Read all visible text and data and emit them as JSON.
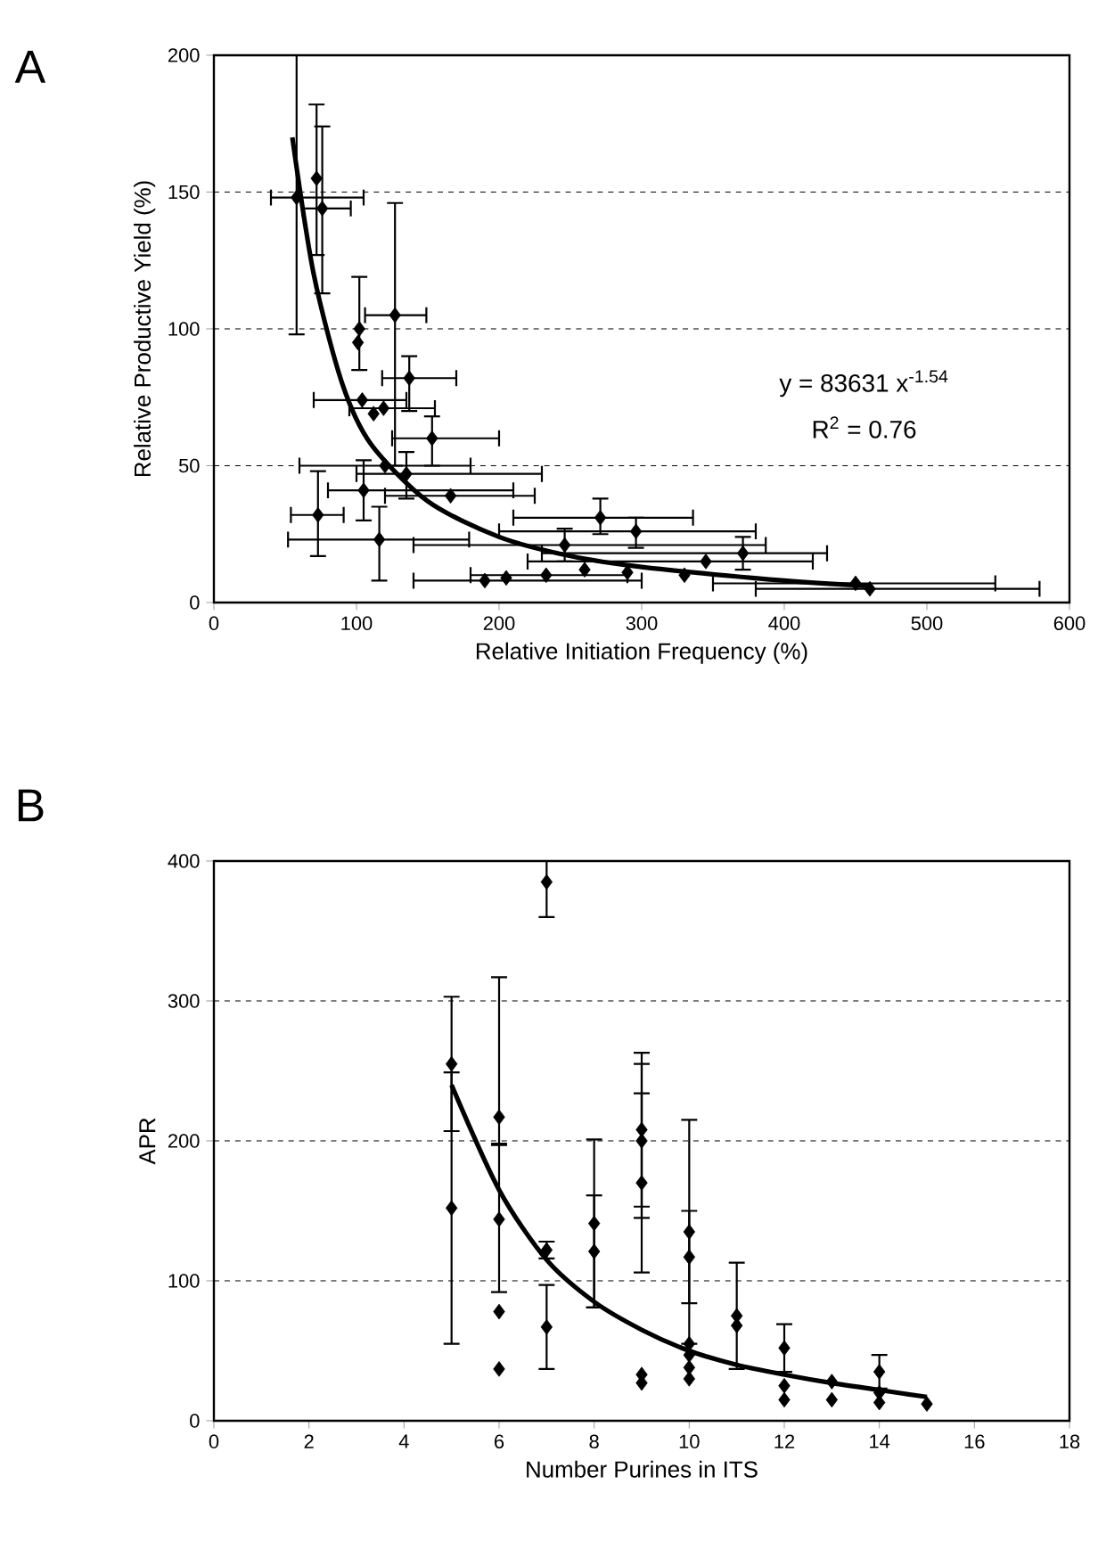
{
  "chart_data": [
    {
      "type": "scatter",
      "title": "A",
      "xlabel": "Relative Initiation Frequency (%)",
      "ylabel": "Relative Productive Yield (%)",
      "xlim": [
        0,
        600
      ],
      "xticks": [
        0,
        100,
        200,
        300,
        400,
        500,
        600
      ],
      "ylim": [
        0,
        200
      ],
      "yticks": [
        0,
        50,
        100,
        150,
        200
      ],
      "grid": "y",
      "annotations": [
        "y = 83631 x$^{-1.54}$",
        "R$^{2}$ = 0.76"
      ],
      "series": [
        {
          "color": "#000000",
          "marker": "diamond",
          "x": [
            58,
            72,
            76,
            127,
            102,
            101,
            137,
            104,
            119,
            112,
            153,
            135,
            120,
            105,
            73,
            116,
            166,
            190,
            271,
            246,
            296,
            290,
            345,
            371,
            450,
            460,
            233,
            205,
            260,
            330
          ],
          "values": [
            148,
            155,
            144,
            105,
            100,
            95,
            82,
            74,
            71,
            69,
            60,
            47,
            50,
            41,
            32,
            23,
            39,
            8,
            31,
            21,
            26,
            11,
            15,
            18,
            7,
            5,
            10,
            9,
            12,
            10
          ],
          "errors": [
            [
              98,
              200
            ],
            [
              127,
              182
            ],
            [
              113,
              174
            ],
            [
              50,
              146
            ],
            [
              85,
              119
            ],
            null,
            [
              70,
              90
            ],
            null,
            null,
            null,
            [
              50,
              68
            ],
            [
              38,
              55
            ],
            null,
            [
              30,
              52
            ],
            [
              17,
              48
            ],
            [
              8,
              35
            ],
            null,
            null,
            [
              25,
              38
            ],
            [
              15,
              27
            ],
            [
              20,
              31
            ],
            null,
            null,
            [
              12,
              24
            ],
            null,
            null,
            null,
            null,
            null,
            null
          ],
          "xerrors": [
            [
              40,
              105
            ],
            null,
            [
              62,
              96
            ],
            [
              106,
              149
            ],
            null,
            null,
            [
              118,
              170
            ],
            [
              70,
              135
            ],
            [
              95,
              155
            ],
            null,
            [
              125,
              200
            ],
            [
              100,
              230
            ],
            [
              60,
              180
            ],
            [
              80,
              210
            ],
            [
              54,
              91
            ],
            [
              52,
              179
            ],
            [
              120,
              225
            ],
            [
              140,
              300
            ],
            [
              210,
              336
            ],
            [
              140,
              387
            ],
            [
              200,
              380
            ],
            null,
            [
              220,
              420
            ],
            [
              230,
              430
            ],
            [
              350,
              548
            ],
            [
              380,
              579
            ],
            [
              180,
              290
            ],
            null,
            null,
            null
          ]
        },
        {
          "type": "line",
          "color": "#000000",
          "marker": "none",
          "line_style": "solid",
          "x": [
            55,
            70,
            90,
            110,
            150,
            200,
            250,
            300,
            400,
            460
          ],
          "values": [
            170,
            120,
            80,
            58,
            37,
            24,
            17,
            13,
            8,
            6
          ]
        }
      ]
    },
    {
      "type": "scatter",
      "title": "B",
      "xlabel": "Number Purines in ITS",
      "ylabel": "APR",
      "xlim": [
        0,
        18
      ],
      "xticks": [
        0,
        2,
        4,
        6,
        8,
        10,
        12,
        14,
        16,
        18
      ],
      "ylim": [
        0,
        400
      ],
      "yticks": [
        0,
        100,
        200,
        300,
        400
      ],
      "grid": "y",
      "series": [
        {
          "color": "#000000",
          "marker": "diamond",
          "x": [
            5,
            5,
            6,
            6,
            6,
            6,
            7,
            7,
            7,
            8,
            8,
            9,
            9,
            9,
            9,
            9,
            10,
            10,
            10,
            10,
            10,
            10,
            11,
            11,
            12,
            12,
            12,
            13,
            13,
            14,
            14,
            14,
            15
          ],
          "values": [
            255,
            152,
            217,
            144,
            78,
            37,
            385,
            122,
            67,
            141,
            121,
            208,
            200,
            170,
            33,
            27,
            135,
            117,
            55,
            47,
            38,
            30,
            75,
            68,
            52,
            25,
            15,
            28,
            15,
            35,
            20,
            13,
            12
          ],
          "errors": [
            48,
            97,
            [
              198,
              317
            ],
            [
              92,
              197
            ],
            null,
            null,
            [
              360,
              400
            ],
            6,
            30,
            60,
            40,
            55,
            55,
            64,
            null,
            null,
            80,
            33,
            null,
            null,
            null,
            null,
            38,
            null,
            17,
            null,
            null,
            null,
            null,
            12,
            null,
            null,
            null
          ]
        },
        {
          "type": "line",
          "color": "#000000",
          "marker": "none",
          "line_style": "solid",
          "x": [
            5,
            6,
            7,
            8,
            9,
            10,
            11,
            12,
            13,
            14,
            15
          ],
          "values": [
            240,
            165,
            115,
            85,
            65,
            50,
            40,
            33,
            27,
            22,
            17
          ]
        }
      ]
    }
  ]
}
